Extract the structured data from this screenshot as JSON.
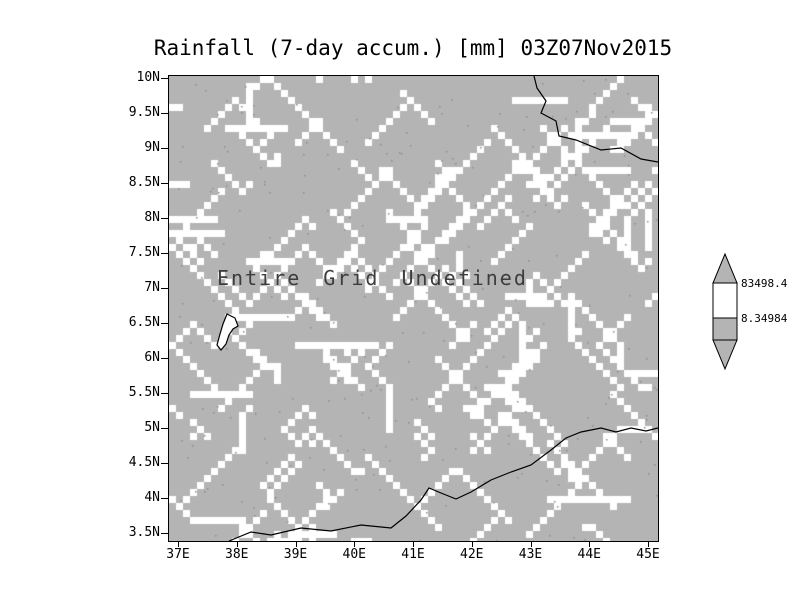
{
  "title": "Rainfall (7-day accum.) [mm] 03Z07Nov2015",
  "plot": {
    "undefined_message": "Entire Grid Undefined",
    "background_color": "#b4b4b4",
    "frame_color": "#000000"
  },
  "axes": {
    "y_ticks": [
      "10N",
      "9.5N",
      "9N",
      "8.5N",
      "8N",
      "7.5N",
      "7N",
      "6.5N",
      "6N",
      "5.5N",
      "5N",
      "4.5N",
      "4N",
      "3.5N"
    ],
    "x_ticks": [
      "37E",
      "38E",
      "39E",
      "40E",
      "41E",
      "42E",
      "43E",
      "44E",
      "45E"
    ]
  },
  "colorbar": {
    "labels": [
      "83498.4",
      "8.34984"
    ],
    "colors": [
      "#b4b4b4",
      "#ffffff",
      "#b4b4b4"
    ]
  },
  "chart_data": {
    "type": "heatmap",
    "title": "Rainfall (7-day accum.) [mm] 03Z07Nov2015",
    "x_tick_labels": [
      "37E",
      "38E",
      "39E",
      "40E",
      "41E",
      "42E",
      "43E",
      "44E",
      "45E"
    ],
    "y_tick_labels": [
      "10N",
      "9.5N",
      "9N",
      "8.5N",
      "8N",
      "7.5N",
      "7N",
      "6.5N",
      "6N",
      "5.5N",
      "5N",
      "4.5N",
      "4N",
      "3.5N"
    ],
    "x_range": [
      "37E",
      "45E"
    ],
    "y_range": [
      "3.5N",
      "10N"
    ],
    "colorbar_boundary_labels": [
      83498.4,
      8.34984
    ],
    "data_status": "Entire Grid Undefined",
    "values": [],
    "grid": false,
    "legend_position": "right"
  }
}
